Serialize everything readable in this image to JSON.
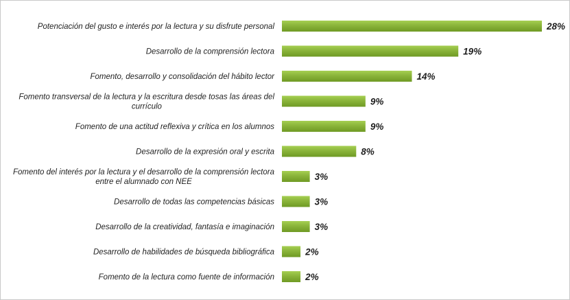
{
  "chart_data": {
    "type": "bar",
    "orientation": "horizontal",
    "title": "",
    "xlabel": "",
    "ylabel": "",
    "xlim": [
      0,
      28
    ],
    "grid": false,
    "bar_color": "#8ab43a",
    "bar_color_light": "#a6cf52",
    "bar_color_dark": "#6f9a24",
    "categories": [
      [
        "Potenciación del gusto e interés por la lectura y su disfrute personal"
      ],
      [
        "Desarrollo de la comprensión lectora"
      ],
      [
        "Fomento, desarrollo y consolidación del hábito lector"
      ],
      [
        "Fomento transversal de la lectura y la escritura desde tosas las áreas del",
        "currículo"
      ],
      [
        "Fomento de una actitud reflexiva y crítica en los alumnos"
      ],
      [
        "Desarrollo de la expresión oral y escrita"
      ],
      [
        "Fomento del interés por la lectura y el desarrollo de la comprensión lectora",
        "entre el alumnado con NEE"
      ],
      [
        "Desarrollo de todas las competencias básicas"
      ],
      [
        "Desarrollo de la creatividad, fantasía e imaginación"
      ],
      [
        "Desarrollo de habilidades de búsqueda bibliográfica"
      ],
      [
        "Fomento de la lectura como fuente de información"
      ]
    ],
    "values": [
      28,
      19,
      14,
      9,
      9,
      8,
      3,
      3,
      3,
      2,
      2
    ],
    "data_labels": [
      "28%",
      "19%",
      "14%",
      "9%",
      "9%",
      "8%",
      "3%",
      "3%",
      "3%",
      "2%",
      "2%"
    ]
  }
}
